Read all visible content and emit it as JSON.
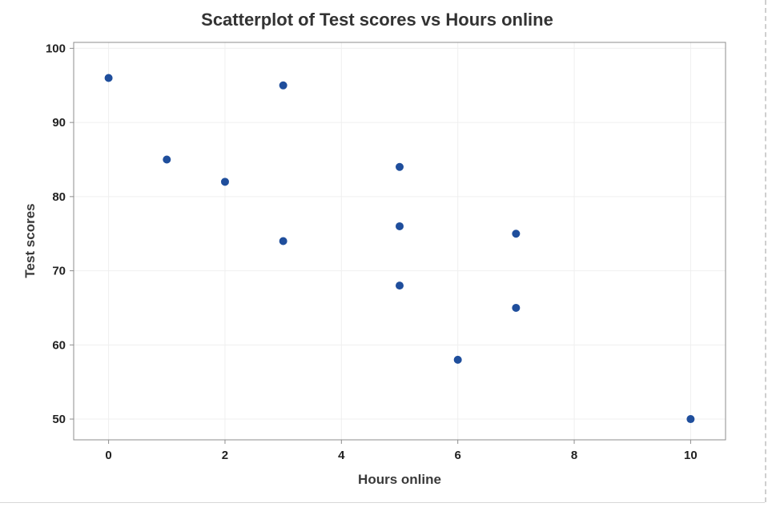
{
  "chart_data": {
    "type": "scatter",
    "title": "Scatterplot of Test scores vs Hours online",
    "xlabel": "Hours online",
    "ylabel": "Test scores",
    "xlim": [
      -0.6,
      10.6
    ],
    "ylim": [
      47.2,
      100.8
    ],
    "xticks": [
      0,
      2,
      4,
      6,
      8,
      10
    ],
    "yticks": [
      50,
      60,
      70,
      80,
      90,
      100
    ],
    "grid": true,
    "legend": "none",
    "point_color": "#1f4e9c",
    "series": [
      {
        "points": [
          {
            "x": 0,
            "y": 96
          },
          {
            "x": 1,
            "y": 85
          },
          {
            "x": 2,
            "y": 82
          },
          {
            "x": 3,
            "y": 95
          },
          {
            "x": 3,
            "y": 74
          },
          {
            "x": 5,
            "y": 84
          },
          {
            "x": 5,
            "y": 76
          },
          {
            "x": 5,
            "y": 68
          },
          {
            "x": 6,
            "y": 58
          },
          {
            "x": 7,
            "y": 75
          },
          {
            "x": 7,
            "y": 65
          },
          {
            "x": 10,
            "y": 50
          }
        ]
      }
    ]
  }
}
